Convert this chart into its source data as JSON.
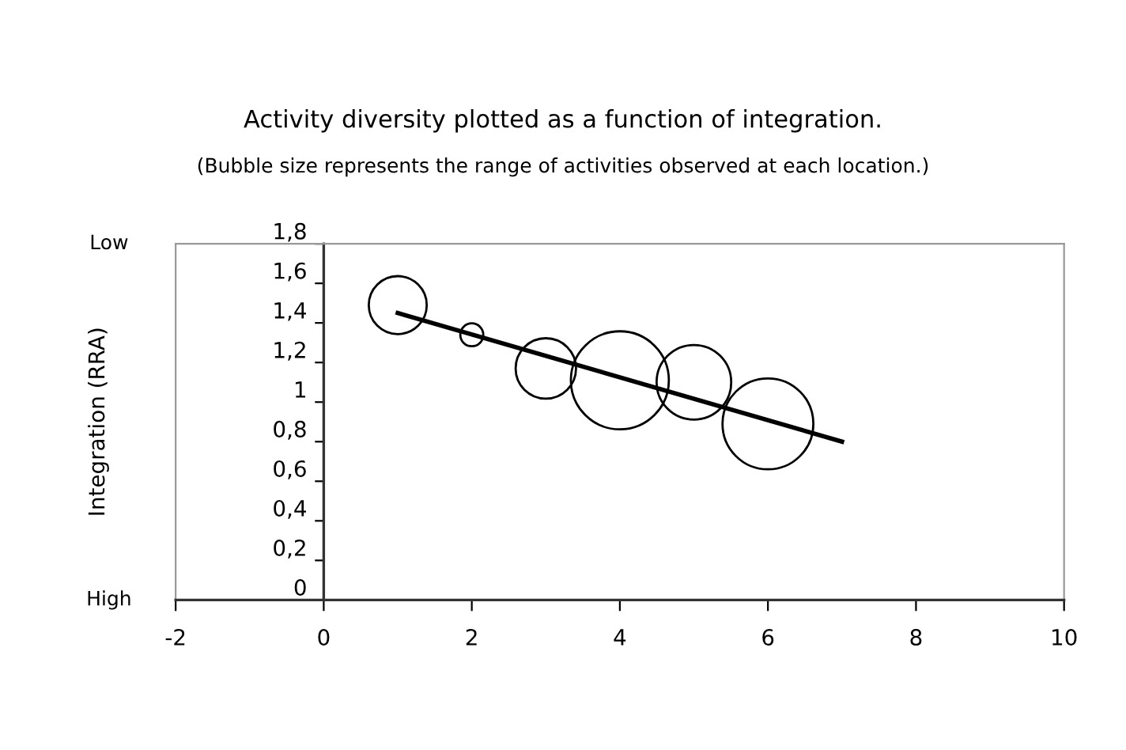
{
  "chart_data": {
    "type": "bubble",
    "title": "Activity diversity plotted as a function of integration.",
    "subtitle": "(Bubble size represents the range of activities observed at each location.)",
    "ylabel": "Integration (RRA)",
    "annotations": [
      "Low",
      "High"
    ],
    "series": [
      {
        "color": "#000000",
        "x": [
          1,
          2,
          3,
          4,
          5,
          6
        ],
        "values": [
          1.49,
          1.34,
          1.17,
          1.11,
          1.1,
          0.89
        ],
        "sizes": [
          0.35,
          0.055,
          0.38,
          1,
          0.58,
          0.86
        ]
      },
      {
        "type": "line",
        "color": "#000000",
        "x": [
          1,
          7
        ],
        "values": [
          1.45,
          0.8
        ],
        "marker": "none",
        "line_style": "solid"
      }
    ],
    "xlim": [
      -2,
      10
    ],
    "xticks": [
      -2,
      0,
      2,
      4,
      6,
      8,
      10
    ],
    "ylim": [
      0,
      1.8
    ],
    "yticks": [
      0,
      {
        "value": 0.2,
        "label": "0,2"
      },
      {
        "value": 0.4,
        "label": "0,4"
      },
      {
        "value": 0.6,
        "label": "0,6"
      },
      {
        "value": 0.8,
        "label": "0,8"
      },
      1,
      {
        "value": 1.2,
        "label": "1,2"
      },
      {
        "value": 1.4,
        "label": "1,4"
      },
      {
        "value": 1.6,
        "label": "1,6"
      },
      {
        "value": 1.8,
        "label": "1,8"
      }
    ],
    "grid": false,
    "legend": false
  }
}
